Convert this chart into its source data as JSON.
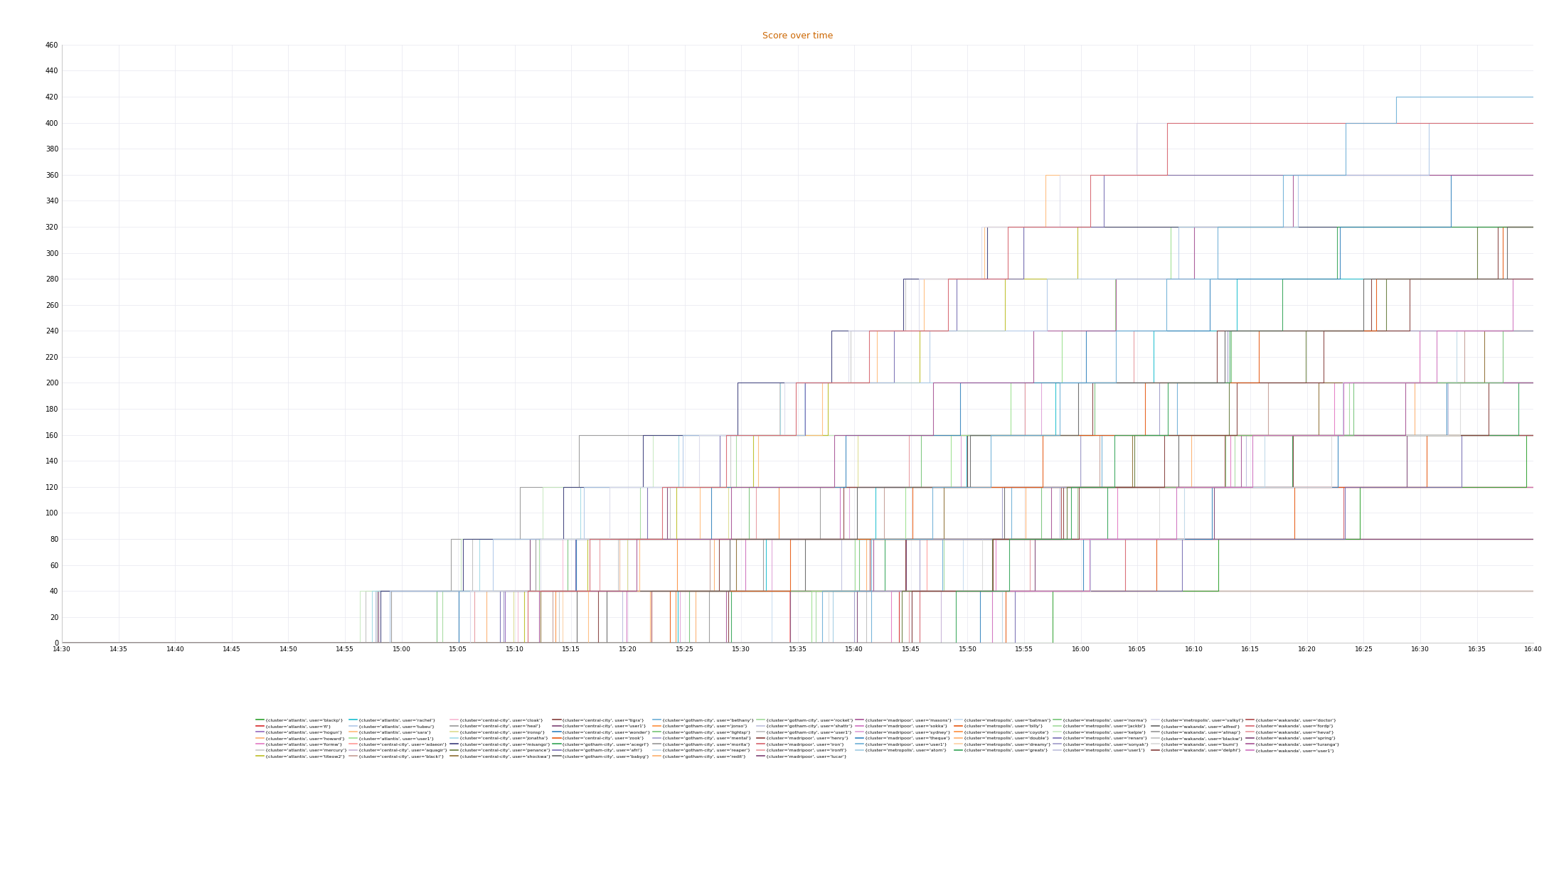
{
  "title": "Score over time",
  "title_color": "#cc6600",
  "ylim": [
    0,
    460
  ],
  "yticks": [
    0,
    20,
    40,
    60,
    80,
    100,
    120,
    140,
    160,
    180,
    200,
    220,
    240,
    260,
    280,
    300,
    320,
    340,
    360,
    380,
    400,
    420,
    440,
    460
  ],
  "background_color": "#ffffff",
  "grid_color": "#e8e8f0",
  "legend_entries": [
    [
      "{cluster='atlantis', user='blackp'}",
      "#2ca02c"
    ],
    [
      "{cluster='atlantis', user='fl'}",
      "#d62728"
    ],
    [
      "{cluster='atlantis', user='hogun'}",
      "#9467bd"
    ],
    [
      "{cluster='atlantis', user='howard'}",
      "#fdae6b"
    ],
    [
      "{cluster='atlantis', user='formw'}",
      "#e377c2"
    ],
    [
      "{cluster='atlantis', user='mercury'}",
      "#c7c7c7"
    ],
    [
      "{cluster='atlantis', user='titeow2'}",
      "#bcbd22"
    ],
    [
      "{cluster='atlantis', user='rachel'}",
      "#17becf"
    ],
    [
      "{cluster='atlantis', user='tubeu'}",
      "#aec7e8"
    ],
    [
      "{cluster='atlantis', user='sara'}",
      "#ffbb78"
    ],
    [
      "{cluster='atlantis', user='user1'}",
      "#98df8a"
    ],
    [
      "{cluster='central-city', user='adaeon'}",
      "#ff9896"
    ],
    [
      "{cluster='central-city', user='aquagir'}",
      "#c5b0d5"
    ],
    [
      "{cluster='central-city', user='black!'}",
      "#c49c94"
    ],
    [
      "{cluster='central-city', user='cloak'}",
      "#f7b6d2"
    ],
    [
      "{cluster='central-city', user='heal'}",
      "#969696"
    ],
    [
      "{cluster='central-city', user='ironsp'}",
      "#dbdb8d"
    ],
    [
      "{cluster='central-city', user='jonatha'}",
      "#9edae5"
    ],
    [
      "{cluster='central-city', user='misango'}",
      "#393b79"
    ],
    [
      "{cluster='central-city', user='penance'}",
      "#637939"
    ],
    [
      "{cluster='central-city', user='shockwa'}",
      "#8c6d31"
    ],
    [
      "{cluster='central-city', user='tigra'}",
      "#843c39"
    ],
    [
      "{cluster='central-city', user='user1'}",
      "#7b4173"
    ],
    [
      "{cluster='central-city', user='wonder'}",
      "#3182bd"
    ],
    [
      "{cluster='central-city', user='zook'}",
      "#e6550d"
    ],
    [
      "{cluster='gotham-city', user='acegrl'}",
      "#31a354"
    ],
    [
      "{cluster='gotham-city', user='afri'}",
      "#756bb1"
    ],
    [
      "{cluster='gotham-city', user='babyg'}",
      "#636363"
    ],
    [
      "{cluster='gotham-city', user='bethany'}",
      "#6baed6"
    ],
    [
      "{cluster='gotham-city', user='jonso'}",
      "#fd8d3c"
    ],
    [
      "{cluster='gotham-city', user='lightsp'}",
      "#74c476"
    ],
    [
      "{cluster='gotham-city', user='mental'}",
      "#9e9ac8"
    ],
    [
      "{cluster='gotham-city', user='morita'}",
      "#969696"
    ],
    [
      "{cluster='gotham-city', user='reaper'}",
      "#bdd7e7"
    ],
    [
      "{cluster='gotham-city', user='redit'}",
      "#fdae6b"
    ],
    [
      "{cluster='gotham-city', user='rocket'}",
      "#a1d99b"
    ],
    [
      "{cluster='gotham-city', user='shattr'}",
      "#bcbddc"
    ],
    [
      "{cluster='gotham-city', user='user1'}",
      "#bdbdbd"
    ],
    [
      "{cluster='madripoor', user='henry'}",
      "#843c39"
    ],
    [
      "{cluster='madripoor', user='iron'}",
      "#d6616b"
    ],
    [
      "{cluster='madripoor', user='ironfi'}",
      "#e7969c"
    ],
    [
      "{cluster='madripoor', user='lucar'}",
      "#7b4173"
    ],
    [
      "{cluster='madripoor', user='masons'}",
      "#a55194"
    ],
    [
      "{cluster='madripoor', user='sokka'}",
      "#ce6dbd"
    ],
    [
      "{cluster='madripoor', user='sydney'}",
      "#de9ed6"
    ],
    [
      "{cluster='madripoor', user='theque'}",
      "#3182bd"
    ],
    [
      "{cluster='madripoor', user='user1'}",
      "#6baed6"
    ],
    [
      "{cluster='metropolis', user='atom'}",
      "#9ecae1"
    ],
    [
      "{cluster='metropolis', user='batman'}",
      "#c6dbef"
    ],
    [
      "{cluster='metropolis', user='billy'}",
      "#e6550d"
    ],
    [
      "{cluster='metropolis', user='coyote'}",
      "#fd8d3c"
    ],
    [
      "{cluster='metropolis', user='double'}",
      "#fdae6b"
    ],
    [
      "{cluster='metropolis', user='dreamy'}",
      "#fdd0a2"
    ],
    [
      "{cluster='metropolis', user='greats'}",
      "#31a354"
    ],
    [
      "{cluster='metropolis', user='norma'}",
      "#74c476"
    ],
    [
      "{cluster='metropolis', user='jackbi'}",
      "#a1d99b"
    ],
    [
      "{cluster='metropolis', user='kelpie'}",
      "#c7e9c0"
    ],
    [
      "{cluster='metropolis', user='renaro'}",
      "#756bb1"
    ],
    [
      "{cluster='metropolis', user='sonyak'}",
      "#9e9ac8"
    ],
    [
      "{cluster='metropolis', user='user1'}",
      "#bcbddc"
    ],
    [
      "{cluster='metropolis', user='valkyl'}",
      "#dadaeb"
    ],
    [
      "{cluster='wakanda', user='alfred'}",
      "#636363"
    ],
    [
      "{cluster='wakanda', user='alinap'}",
      "#969696"
    ],
    [
      "{cluster='wakanda', user='blackw'}",
      "#bdbdbd"
    ],
    [
      "{cluster='wakanda', user='bumi'}",
      "#d9d9d9"
    ],
    [
      "{cluster='wakanda', user='delphi'}",
      "#843c39"
    ],
    [
      "{cluster='wakanda', user='doctor'}",
      "#ad494a"
    ],
    [
      "{cluster='wakanda', user='fordp'}",
      "#d6616b"
    ],
    [
      "{cluster='wakanda', user='heval'}",
      "#e7969c"
    ],
    [
      "{cluster='wakanda', user='spring'}",
      "#7b4173"
    ],
    [
      "{cluster='wakanda', user='turanga'}",
      "#a55194"
    ],
    [
      "{cluster='wakanda', user='user1'}",
      "#ce6dbd"
    ]
  ]
}
